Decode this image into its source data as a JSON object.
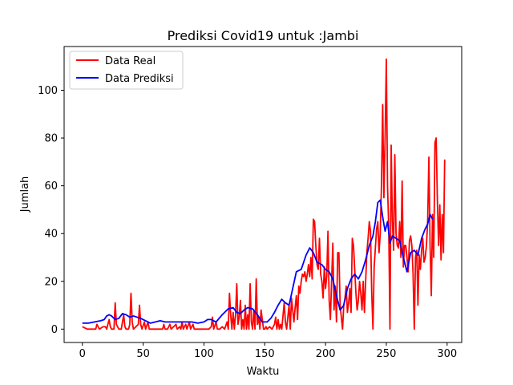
{
  "chart_data": {
    "type": "line",
    "title": "Prediksi Covid19 untuk :Jambi",
    "xlabel": "Waktu",
    "ylabel": "Jumlah",
    "xlim": [
      -15,
      312
    ],
    "ylim": [
      -5.6,
      118.3
    ],
    "xticks": [
      0,
      50,
      100,
      150,
      200,
      250,
      300
    ],
    "yticks": [
      0,
      20,
      40,
      60,
      80,
      100
    ],
    "grid": false,
    "legend_position": "top-left",
    "series": [
      {
        "name": "Data Real",
        "color": "#ff0000",
        "points": [
          [
            0,
            1
          ],
          [
            4,
            0
          ],
          [
            8,
            0
          ],
          [
            11,
            0
          ],
          [
            12,
            2
          ],
          [
            14,
            0
          ],
          [
            17,
            1
          ],
          [
            19,
            1
          ],
          [
            20,
            0
          ],
          [
            22,
            4
          ],
          [
            23,
            1
          ],
          [
            24,
            0
          ],
          [
            26,
            0
          ],
          [
            27,
            11
          ],
          [
            28,
            2
          ],
          [
            30,
            0
          ],
          [
            32,
            0
          ],
          [
            34,
            6
          ],
          [
            35,
            1
          ],
          [
            36,
            0
          ],
          [
            38,
            0
          ],
          [
            39,
            2
          ],
          [
            40,
            15
          ],
          [
            41,
            3
          ],
          [
            42,
            0
          ],
          [
            44,
            1
          ],
          [
            46,
            2
          ],
          [
            47,
            10
          ],
          [
            48,
            2
          ],
          [
            49,
            0
          ],
          [
            51,
            3
          ],
          [
            52,
            0
          ],
          [
            54,
            3
          ],
          [
            55,
            0
          ],
          [
            57,
            0
          ],
          [
            60,
            0
          ],
          [
            63,
            0
          ],
          [
            66,
            0
          ],
          [
            67,
            2
          ],
          [
            68,
            0
          ],
          [
            70,
            0
          ],
          [
            72,
            2
          ],
          [
            73,
            0
          ],
          [
            75,
            1
          ],
          [
            77,
            2
          ],
          [
            78,
            0
          ],
          [
            80,
            1
          ],
          [
            81,
            0
          ],
          [
            82,
            3
          ],
          [
            83,
            0
          ],
          [
            85,
            2
          ],
          [
            86,
            0
          ],
          [
            88,
            3
          ],
          [
            89,
            0
          ],
          [
            91,
            2
          ],
          [
            92,
            0
          ],
          [
            94,
            0
          ],
          [
            97,
            0
          ],
          [
            100,
            0
          ],
          [
            102,
            0
          ],
          [
            104,
            0
          ],
          [
            106,
            1
          ],
          [
            107,
            5
          ],
          [
            108,
            0
          ],
          [
            110,
            3
          ],
          [
            111,
            0
          ],
          [
            113,
            0
          ],
          [
            115,
            1
          ],
          [
            117,
            0
          ],
          [
            119,
            3
          ],
          [
            120,
            0
          ],
          [
            121,
            15
          ],
          [
            122,
            6
          ],
          [
            123,
            0
          ],
          [
            124,
            7
          ],
          [
            125,
            0
          ],
          [
            126,
            6
          ],
          [
            127,
            19
          ],
          [
            128,
            2
          ],
          [
            129,
            5
          ],
          [
            130,
            12
          ],
          [
            131,
            0
          ],
          [
            132,
            4
          ],
          [
            133,
            0
          ],
          [
            134,
            10
          ],
          [
            135,
            0
          ],
          [
            136,
            6
          ],
          [
            137,
            0
          ],
          [
            138,
            19
          ],
          [
            139,
            3
          ],
          [
            140,
            0
          ],
          [
            141,
            8
          ],
          [
            142,
            0
          ],
          [
            143,
            21
          ],
          [
            144,
            2
          ],
          [
            145,
            5
          ],
          [
            146,
            0
          ],
          [
            147,
            8
          ],
          [
            148,
            4
          ],
          [
            149,
            0
          ],
          [
            150,
            0
          ],
          [
            151,
            1
          ],
          [
            152,
            0
          ],
          [
            154,
            1
          ],
          [
            156,
            0
          ],
          [
            158,
            2
          ],
          [
            159,
            5
          ],
          [
            160,
            0
          ],
          [
            161,
            4
          ],
          [
            162,
            0
          ],
          [
            163,
            2
          ],
          [
            164,
            0
          ],
          [
            166,
            11
          ],
          [
            167,
            3
          ],
          [
            168,
            0
          ],
          [
            170,
            10
          ],
          [
            171,
            0
          ],
          [
            172,
            13
          ],
          [
            173,
            8
          ],
          [
            174,
            3
          ],
          [
            175,
            9
          ],
          [
            176,
            14
          ],
          [
            177,
            4
          ],
          [
            178,
            18
          ],
          [
            179,
            15
          ],
          [
            180,
            20
          ],
          [
            181,
            23
          ],
          [
            182,
            22
          ],
          [
            183,
            24
          ],
          [
            184,
            20
          ],
          [
            185,
            23
          ],
          [
            186,
            27
          ],
          [
            187,
            22
          ],
          [
            188,
            30
          ],
          [
            189,
            21
          ],
          [
            190,
            46
          ],
          [
            191,
            45
          ],
          [
            192,
            35
          ],
          [
            193,
            27
          ],
          [
            194,
            25
          ],
          [
            195,
            38
          ],
          [
            196,
            23
          ],
          [
            197,
            20
          ],
          [
            198,
            13
          ],
          [
            199,
            26
          ],
          [
            200,
            17
          ],
          [
            201,
            22
          ],
          [
            202,
            41
          ],
          [
            203,
            12
          ],
          [
            204,
            4
          ],
          [
            205,
            20
          ],
          [
            206,
            36
          ],
          [
            207,
            8
          ],
          [
            208,
            18
          ],
          [
            209,
            3
          ],
          [
            210,
            32
          ],
          [
            211,
            32
          ],
          [
            212,
            10
          ],
          [
            213,
            5
          ],
          [
            214,
            0
          ],
          [
            215,
            10
          ],
          [
            216,
            13
          ],
          [
            217,
            18
          ],
          [
            218,
            7
          ],
          [
            219,
            11
          ],
          [
            220,
            17
          ],
          [
            221,
            7
          ],
          [
            222,
            38
          ],
          [
            223,
            35
          ],
          [
            224,
            25
          ],
          [
            225,
            15
          ],
          [
            226,
            8
          ],
          [
            227,
            12
          ],
          [
            228,
            20
          ],
          [
            229,
            15
          ],
          [
            230,
            8
          ],
          [
            231,
            20
          ],
          [
            232,
            7
          ],
          [
            233,
            20
          ],
          [
            234,
            32
          ],
          [
            235,
            38
          ],
          [
            236,
            45
          ],
          [
            237,
            41
          ],
          [
            238,
            15
          ],
          [
            239,
            0
          ],
          [
            240,
            26
          ],
          [
            241,
            34
          ],
          [
            242,
            42
          ],
          [
            243,
            45
          ],
          [
            244,
            32
          ],
          [
            245,
            40
          ],
          [
            246,
            60
          ],
          [
            247,
            94
          ],
          [
            248,
            55
          ],
          [
            249,
            80
          ],
          [
            250,
            113
          ],
          [
            251,
            60
          ],
          [
            252,
            42
          ],
          [
            253,
            0
          ],
          [
            254,
            77
          ],
          [
            255,
            45
          ],
          [
            256,
            33
          ],
          [
            257,
            73
          ],
          [
            258,
            40
          ],
          [
            259,
            35
          ],
          [
            260,
            34
          ],
          [
            261,
            45
          ],
          [
            262,
            30
          ],
          [
            263,
            62
          ],
          [
            264,
            26
          ],
          [
            265,
            35
          ],
          [
            266,
            35
          ],
          [
            267,
            30
          ],
          [
            268,
            24
          ],
          [
            269,
            37
          ],
          [
            270,
            39
          ],
          [
            271,
            35
          ],
          [
            272,
            23
          ],
          [
            273,
            0
          ],
          [
            274,
            30
          ],
          [
            275,
            33
          ],
          [
            276,
            10
          ],
          [
            277,
            31
          ],
          [
            278,
            25
          ],
          [
            279,
            33
          ],
          [
            280,
            38
          ],
          [
            281,
            28
          ],
          [
            282,
            30
          ],
          [
            283,
            35
          ],
          [
            284,
            45
          ],
          [
            285,
            72
          ],
          [
            286,
            35
          ],
          [
            287,
            14
          ],
          [
            288,
            48
          ],
          [
            289,
            30
          ],
          [
            290,
            78
          ],
          [
            291,
            80
          ],
          [
            292,
            54
          ],
          [
            293,
            35
          ],
          [
            294,
            52
          ],
          [
            295,
            29
          ],
          [
            296,
            48
          ],
          [
            297,
            32
          ],
          [
            298,
            71
          ]
        ]
      },
      {
        "name": "Data Prediksi",
        "color": "#0000ff",
        "points": [
          [
            0,
            2.5
          ],
          [
            5,
            2.5
          ],
          [
            10,
            3
          ],
          [
            15,
            3.5
          ],
          [
            18,
            4
          ],
          [
            20,
            5.5
          ],
          [
            22,
            6
          ],
          [
            24,
            5.5
          ],
          [
            27,
            4
          ],
          [
            30,
            4.5
          ],
          [
            33,
            6.5
          ],
          [
            36,
            6
          ],
          [
            39,
            5
          ],
          [
            42,
            5.5
          ],
          [
            45,
            5
          ],
          [
            48,
            4.5
          ],
          [
            52,
            3.5
          ],
          [
            56,
            2.5
          ],
          [
            60,
            3
          ],
          [
            64,
            3.5
          ],
          [
            68,
            3
          ],
          [
            72,
            3
          ],
          [
            76,
            3
          ],
          [
            80,
            3
          ],
          [
            85,
            3
          ],
          [
            90,
            3
          ],
          [
            95,
            2.5
          ],
          [
            100,
            3
          ],
          [
            103,
            4
          ],
          [
            106,
            4
          ],
          [
            110,
            3
          ],
          [
            115,
            6
          ],
          [
            120,
            8.5
          ],
          [
            124,
            9
          ],
          [
            127,
            7
          ],
          [
            130,
            6.5
          ],
          [
            133,
            8
          ],
          [
            136,
            9
          ],
          [
            140,
            8.5
          ],
          [
            144,
            6
          ],
          [
            148,
            3
          ],
          [
            152,
            3
          ],
          [
            155,
            4.5
          ],
          [
            158,
            7
          ],
          [
            161,
            10
          ],
          [
            164,
            12.5
          ],
          [
            167,
            11
          ],
          [
            170,
            10
          ],
          [
            173,
            17
          ],
          [
            176,
            24
          ],
          [
            180,
            25
          ],
          [
            184,
            31
          ],
          [
            187,
            34
          ],
          [
            190,
            32
          ],
          [
            193,
            28
          ],
          [
            197,
            27
          ],
          [
            200,
            25
          ],
          [
            203,
            24
          ],
          [
            206,
            21
          ],
          [
            209,
            14
          ],
          [
            212,
            8
          ],
          [
            215,
            10
          ],
          [
            218,
            17
          ],
          [
            221,
            21
          ],
          [
            224,
            23
          ],
          [
            227,
            21
          ],
          [
            230,
            24
          ],
          [
            233,
            29
          ],
          [
            236,
            35
          ],
          [
            239,
            39
          ],
          [
            241,
            45
          ],
          [
            243,
            53
          ],
          [
            245,
            54
          ],
          [
            247,
            47
          ],
          [
            249,
            41
          ],
          [
            251,
            45
          ],
          [
            253,
            36
          ],
          [
            255,
            39
          ],
          [
            258,
            38
          ],
          [
            261,
            37
          ],
          [
            264,
            30
          ],
          [
            267,
            24
          ],
          [
            270,
            32
          ],
          [
            273,
            33
          ],
          [
            276,
            31
          ],
          [
            279,
            38
          ],
          [
            282,
            42
          ],
          [
            284,
            44
          ],
          [
            286,
            48
          ],
          [
            288,
            46
          ]
        ]
      }
    ]
  }
}
